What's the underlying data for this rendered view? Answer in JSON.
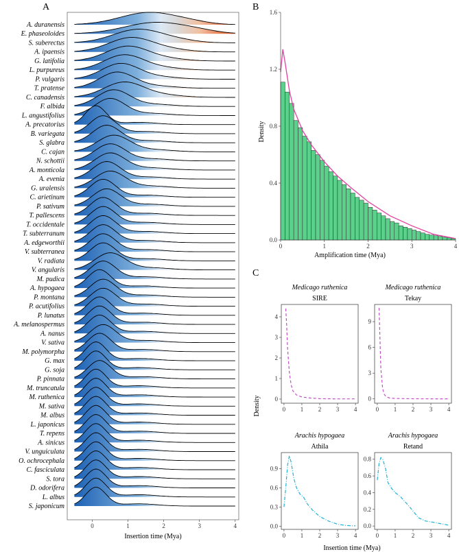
{
  "panels": {
    "a": "A",
    "b": "B",
    "c": "C"
  },
  "chart_data": [
    {
      "type": "ridgeline",
      "panel": "A",
      "xlabel": "Insertion time (Mya)",
      "xlim": [
        -0.7,
        4.1
      ],
      "xticks": [
        "0",
        "1",
        "2",
        "3",
        "4"
      ],
      "species": [
        "A. duranensis",
        "E. phaseoloides",
        "S. suberectus",
        "A. ipaensis",
        "G. latifolia",
        "L. purpureus",
        "P. vulgaris",
        "T. pratense",
        "C. canadensis",
        "F. albida",
        "L. angustifolius",
        "A. precatorius",
        "B. variegata",
        "S. glabra",
        "C. cajan",
        "N. schottii",
        "A. monticola",
        "A. evenia",
        "G. uralensis",
        "C. arietinum",
        "P. sativum",
        "T. pallescens",
        "T. occidentale",
        "T. subterranum",
        "A. edgeworthii",
        "V. subterranea",
        "V. radiata",
        "V. angularis",
        "M. pudica",
        "A. hypogaea",
        "P. montana",
        "P. acutifolius",
        "P. lunatus",
        "A. melanospermus",
        "A. nanus",
        "V. sativa",
        "M. polymorpha",
        "G. max",
        "G. soja",
        "P. pinnata",
        "M. truncatula",
        "M. ruthenica",
        "M. sativa",
        "M. albus",
        "L. japonicus",
        "T. repens",
        "A. sinicus",
        "V. unguiculata",
        "O. ochrocephala",
        "C. fasciculata",
        "S. tora",
        "D. odorifera",
        "L. albus",
        "S. japonicum"
      ],
      "peaks": [
        1.6,
        1.8,
        1.3,
        1.1,
        1.0,
        0.9,
        0.8,
        0.7,
        0.9,
        0.6,
        0.5,
        0.1,
        0.3,
        0.4,
        0.6,
        0.5,
        0.5,
        0.4,
        0.5,
        0.3,
        0.4,
        0.3,
        0.3,
        0.3,
        0.3,
        0.3,
        0.3,
        0.5,
        0.3,
        0.2,
        0.3,
        0.3,
        0.2,
        0.2,
        0.2,
        0.3,
        0.2,
        0.1,
        0.1,
        0.2,
        0.1,
        0.1,
        0.1,
        0.1,
        0.1,
        0.1,
        0.1,
        0.1,
        0.1,
        0.1,
        0.1,
        0.1,
        0.1,
        0.1
      ],
      "gradient": [
        "#1f63b5",
        "#dde9f5",
        "#d9d9d9",
        "#f2c0a0",
        "#e05a28"
      ]
    },
    {
      "type": "histogram",
      "panel": "B",
      "xlabel": "Amplification time (Mya)",
      "ylabel": "Density",
      "xlim": [
        0,
        4
      ],
      "ylim": [
        0,
        1.6
      ],
      "xticks": [
        "0",
        "1",
        "2",
        "3",
        "4"
      ],
      "yticks": [
        "0.0",
        "0.4",
        "0.8",
        "1.2",
        "1.6"
      ],
      "bin_width": 0.1,
      "values": [
        1.11,
        1.04,
        0.96,
        0.84,
        0.79,
        0.73,
        0.69,
        0.63,
        0.6,
        0.56,
        0.52,
        0.48,
        0.45,
        0.42,
        0.39,
        0.36,
        0.33,
        0.3,
        0.28,
        0.26,
        0.23,
        0.21,
        0.19,
        0.17,
        0.15,
        0.13,
        0.12,
        0.1,
        0.09,
        0.08,
        0.07,
        0.06,
        0.05,
        0.04,
        0.035,
        0.03,
        0.025,
        0.02,
        0.015,
        0.01
      ],
      "curve_x": [
        0,
        0.05,
        0.1,
        0.2,
        0.3,
        0.5,
        0.7,
        1,
        1.3,
        1.6,
        2,
        2.5,
        3,
        3.5,
        4
      ],
      "curve_y": [
        1.18,
        1.34,
        1.25,
        1.05,
        0.92,
        0.77,
        0.67,
        0.55,
        0.45,
        0.37,
        0.27,
        0.17,
        0.1,
        0.04,
        0.01
      ],
      "bar_color": "#5bd08a",
      "curve_color": "#e040a0"
    },
    {
      "type": "line",
      "panel": "C",
      "xlabel": "Insertion time (Mya)",
      "ylabel": "Density",
      "facets": [
        {
          "species": "Medicago ruthenica",
          "family": "SIRE",
          "ylim": [
            -0.2,
            4.6
          ],
          "yticks": [
            "0",
            "1",
            "2",
            "3",
            "4"
          ],
          "xticks": [
            "0",
            "1",
            "2",
            "3",
            "4"
          ],
          "color": "#c04fc6",
          "dash": "dashed",
          "x": [
            0.1,
            0.15,
            0.2,
            0.3,
            0.4,
            0.5,
            0.7,
            1,
            1.5,
            2,
            3,
            4
          ],
          "y": [
            4.4,
            3.6,
            2.5,
            1.3,
            0.7,
            0.4,
            0.2,
            0.1,
            0.05,
            0.02,
            0.01,
            0.01
          ]
        },
        {
          "species": "Medicago ruthenica",
          "family": "Tekay",
          "ylim": [
            -0.5,
            11
          ],
          "yticks": [
            "0",
            "3",
            "6",
            "9"
          ],
          "xticks": [
            "0",
            "1",
            "2",
            "3",
            "4"
          ],
          "color": "#c04fc6",
          "dash": "dashed",
          "x": [
            0.1,
            0.15,
            0.2,
            0.3,
            0.4,
            0.5,
            0.7,
            1,
            2,
            3,
            4
          ],
          "y": [
            10.6,
            7,
            3.5,
            1.2,
            0.5,
            0.25,
            0.1,
            0.05,
            0.02,
            0.01,
            0.01
          ]
        },
        {
          "species": "Arachis hypogaea",
          "family": "Athila",
          "ylim": [
            -0.05,
            1.15
          ],
          "yticks": [
            "0.0",
            "0.3",
            "0.6",
            "0.9"
          ],
          "xticks": [
            "0",
            "1",
            "2",
            "3",
            "4"
          ],
          "color": "#1fb2d4",
          "dash": "dashdot",
          "x": [
            0,
            0.1,
            0.2,
            0.3,
            0.4,
            0.55,
            0.7,
            0.9,
            1.1,
            1.3,
            1.6,
            2,
            2.5,
            3,
            3.5,
            4
          ],
          "y": [
            0.3,
            0.6,
            0.95,
            1.1,
            1.0,
            0.75,
            0.6,
            0.5,
            0.45,
            0.35,
            0.25,
            0.15,
            0.08,
            0.03,
            0.01,
            0.005
          ]
        },
        {
          "species": "Arachis hypogaea",
          "family": "Retand",
          "ylim": [
            -0.04,
            0.88
          ],
          "yticks": [
            "0.0",
            "0.2",
            "0.4",
            "0.6",
            "0.8"
          ],
          "xticks": [
            "0",
            "1",
            "2",
            "3",
            "4"
          ],
          "color": "#1fb2d4",
          "dash": "dashdot",
          "x": [
            0,
            0.1,
            0.2,
            0.3,
            0.45,
            0.6,
            0.8,
            1,
            1.3,
            1.6,
            2,
            2.3,
            2.7,
            3,
            3.5,
            4
          ],
          "y": [
            0.55,
            0.75,
            0.82,
            0.8,
            0.7,
            0.52,
            0.45,
            0.4,
            0.35,
            0.28,
            0.18,
            0.1,
            0.06,
            0.05,
            0.03,
            0.01
          ]
        }
      ]
    }
  ]
}
